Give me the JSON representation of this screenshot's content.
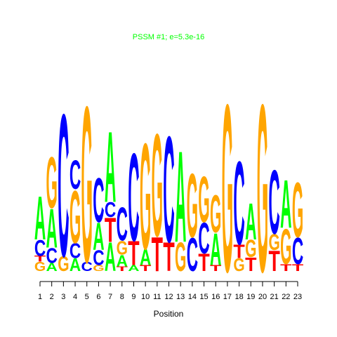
{
  "chart_data": {
    "type": "sequence-logo",
    "title": "PSSM #1; e=5.3e-16",
    "xlabel": "Position",
    "ylabel": "",
    "x": [
      1,
      2,
      3,
      4,
      5,
      6,
      7,
      8,
      9,
      10,
      11,
      12,
      13,
      14,
      15,
      16,
      17,
      18,
      19,
      20,
      21,
      22,
      23
    ],
    "ylim": [
      0,
      2
    ],
    "letter_colors": {
      "A": "#00ff00",
      "C": "#0000ff",
      "G": "#ffa500",
      "T": "#ff0000"
    },
    "title_color": "#00ff00",
    "columns": [
      [
        [
          "G",
          0.08
        ],
        [
          "T",
          0.05
        ],
        [
          "C",
          0.14
        ],
        [
          "A",
          0.38
        ]
      ],
      [
        [
          "A",
          0.07
        ],
        [
          "C",
          0.13
        ],
        [
          "A",
          0.34
        ],
        [
          "G",
          0.45
        ]
      ],
      [
        [
          "G",
          0.13
        ],
        [
          "C",
          1.25
        ]
      ],
      [
        [
          "A",
          0.11
        ],
        [
          "C",
          0.13
        ],
        [
          "G",
          0.46
        ],
        [
          "C",
          0.25
        ]
      ],
      [
        [
          "C",
          0.08
        ],
        [
          "G",
          1.37
        ]
      ],
      [
        [
          "G",
          0.05
        ],
        [
          "C",
          0.13
        ],
        [
          "A",
          0.24
        ],
        [
          "C",
          0.39
        ]
      ],
      [
        [
          "A",
          0.25
        ],
        [
          "T",
          0.21
        ],
        [
          "C",
          0.13
        ],
        [
          "A",
          0.62
        ]
      ],
      [
        [
          "T",
          0.04
        ],
        [
          "A",
          0.1
        ],
        [
          "G",
          0.12
        ],
        [
          "C",
          0.29
        ]
      ],
      [
        [
          "A",
          0.05
        ],
        [
          "T",
          0.21
        ],
        [
          "C",
          0.77
        ]
      ],
      [
        [
          "T",
          0.05
        ],
        [
          "A",
          0.14
        ],
        [
          "G",
          0.93
        ]
      ],
      [
        [
          "T",
          0.3
        ],
        [
          "G",
          0.9
        ]
      ],
      [
        [
          "T",
          0.25
        ],
        [
          "C",
          0.93
        ]
      ],
      [
        [
          "G",
          0.25
        ],
        [
          "A",
          0.8
        ]
      ],
      [
        [
          "C",
          0.29
        ],
        [
          "G",
          0.56
        ]
      ],
      [
        [
          "T",
          0.15
        ],
        [
          "C",
          0.27
        ],
        [
          "G",
          0.4
        ]
      ],
      [
        [
          "T",
          0.05
        ],
        [
          "A",
          0.28
        ],
        [
          "G",
          0.33
        ]
      ],
      [
        [
          "G",
          1.47
        ]
      ],
      [
        [
          "G",
          0.11
        ],
        [
          "T",
          0.12
        ],
        [
          "C",
          0.73
        ]
      ],
      [
        [
          "T",
          0.12
        ],
        [
          "G",
          0.15
        ],
        [
          "A",
          0.32
        ]
      ],
      [
        [
          "G",
          1.47
        ]
      ],
      [
        [
          "T",
          0.18
        ],
        [
          "G",
          0.14
        ],
        [
          "C",
          0.56
        ]
      ],
      [
        [
          "T",
          0.06
        ],
        [
          "G",
          0.31
        ],
        [
          "A",
          0.42
        ]
      ],
      [
        [
          "T",
          0.06
        ],
        [
          "C",
          0.23
        ],
        [
          "G",
          0.48
        ]
      ]
    ]
  }
}
